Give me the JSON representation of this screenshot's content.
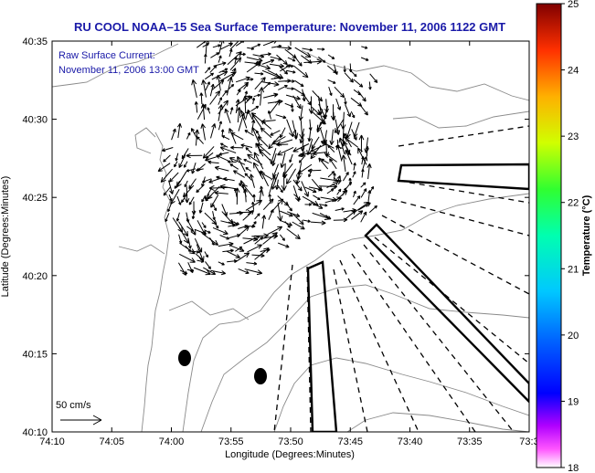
{
  "chart_data": {
    "type": "vector-field",
    "title": "RU COOL  NOAA–15  Sea Surface Temperature:  November 11, 2006 1122 GMT",
    "annotations": [
      "Raw Surface Current:",
      "November 11, 2006 13:00 GMT"
    ],
    "xlabel": "Longitude (Degrees:Minutes)",
    "ylabel": "Latitude (Degrees:Minutes)",
    "x_ticks": [
      "74:10",
      "74:05",
      "74:00",
      "73:55",
      "73:50",
      "73:45",
      "73:40",
      "73:35",
      "73:3"
    ],
    "y_ticks": [
      "40:10",
      "40:15",
      "40:20",
      "40:25",
      "40:30",
      "40:35"
    ],
    "xlim_minutes_west": [
      -10,
      30
    ],
    "ylim_minutes_north": [
      10,
      35
    ],
    "colorbar": {
      "label": "Temperature (°C)",
      "min": 18,
      "max": 25,
      "ticks": [
        "18",
        "19",
        "20",
        "21",
        "22",
        "23",
        "24",
        "25"
      ],
      "colormap": "jet"
    },
    "scale_vector": {
      "label": "50 cm/s"
    },
    "colors": {
      "title": "#1a1aa8",
      "contour": "#8a8a8a",
      "land": "#ffffff",
      "vectors": "#000000"
    }
  }
}
